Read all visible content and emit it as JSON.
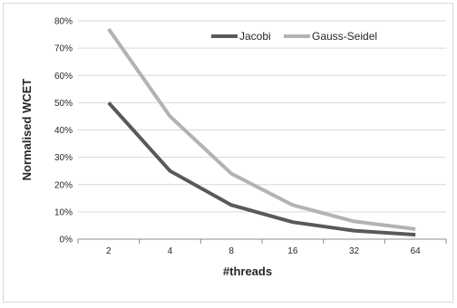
{
  "chart_data": {
    "type": "line",
    "xlabel": "#threads",
    "ylabel": "Normalised WCET",
    "categories": [
      "2",
      "4",
      "8",
      "16",
      "32",
      "64"
    ],
    "y_ticks": [
      "0%",
      "10%",
      "20%",
      "30%",
      "40%",
      "50%",
      "60%",
      "70%",
      "80%"
    ],
    "ylim": [
      0,
      80
    ],
    "grid": true,
    "legend_position": "top-right",
    "series": [
      {
        "name": "Jacobi",
        "color": "#595959",
        "values": [
          50,
          25,
          12.5,
          6.25,
          3.1,
          1.6
        ]
      },
      {
        "name": "Gauss-Seidel",
        "color": "#b3b3b3",
        "values": [
          77,
          45,
          24,
          12.5,
          6.5,
          3.7
        ]
      }
    ]
  }
}
